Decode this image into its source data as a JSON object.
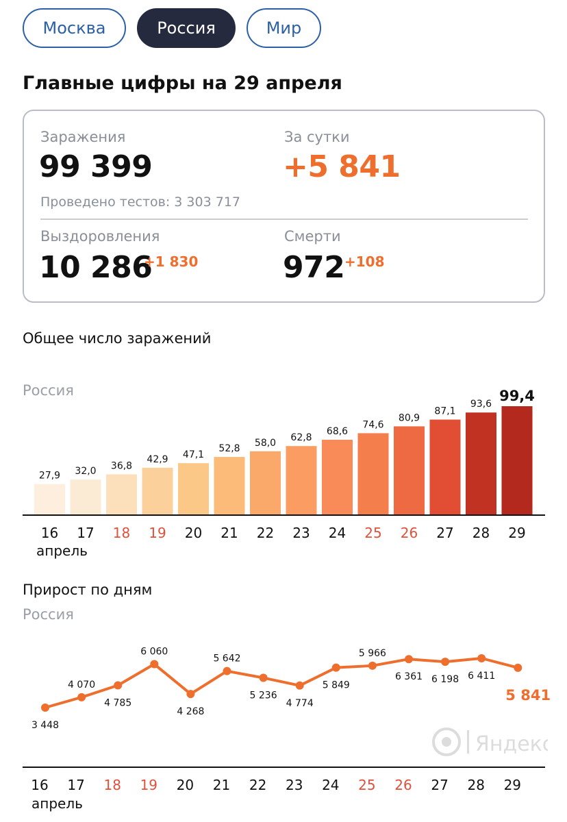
{
  "tabs": [
    {
      "label": "Москва",
      "active": false
    },
    {
      "label": "Россия",
      "active": true
    },
    {
      "label": "Мир",
      "active": false
    }
  ],
  "main_title": "Главные цифры на 29 апреля",
  "stats": {
    "infections_label": "Заражения",
    "infections_value": "99 399",
    "day_label": "За сутки",
    "day_value": "+5 841",
    "tests_text": "Проведено тестов: 3 303 717",
    "recovered_label": "Выздоровления",
    "recovered_value": "10 286",
    "recovered_inc": "+1 830",
    "deaths_label": "Смерти",
    "deaths_value": "972",
    "deaths_inc": "+108"
  },
  "bar_section": {
    "title": "Общее число заражений",
    "region": "Россия"
  },
  "line_section": {
    "title": "Прирост по дням",
    "region": "Россия"
  },
  "logo_text": "Яндекс",
  "colors": {
    "accent": "#ee6e2d",
    "weekend": "#e0503c",
    "tab_active": "#262a3f",
    "tab_border": "#2b5fa8"
  },
  "chart_data": [
    {
      "type": "bar",
      "title": "Общее число заражений",
      "subtitle": "Россия",
      "categories": [
        "16",
        "17",
        "18",
        "19",
        "20",
        "21",
        "22",
        "23",
        "24",
        "25",
        "26",
        "27",
        "28",
        "29"
      ],
      "weekend": [
        false,
        false,
        true,
        true,
        false,
        false,
        false,
        false,
        false,
        true,
        true,
        false,
        false,
        false
      ],
      "month_label": "апрель",
      "values": [
        27.9,
        32.0,
        36.8,
        42.9,
        47.1,
        52.8,
        58.0,
        62.8,
        68.6,
        74.6,
        80.9,
        87.1,
        93.6,
        99.4
      ],
      "value_labels": [
        "27,9",
        "32,0",
        "36,8",
        "42,9",
        "47,1",
        "52,8",
        "58,0",
        "62,8",
        "68,6",
        "74,6",
        "80,9",
        "87,1",
        "93,6",
        "99,4"
      ],
      "bar_colors": [
        "#fdeedd",
        "#fcebd4",
        "#fbe0bb",
        "#fcd09a",
        "#fcc888",
        "#fcbb78",
        "#fba86b",
        "#fb9c63",
        "#f98b59",
        "#f47e4c",
        "#ee6a43",
        "#e24e33",
        "#c13223",
        "#b4291d"
      ],
      "ylim": [
        0,
        100
      ]
    },
    {
      "type": "line",
      "title": "Прирост по дням",
      "subtitle": "Россия",
      "categories": [
        "16",
        "17",
        "18",
        "19",
        "20",
        "21",
        "22",
        "23",
        "24",
        "25",
        "26",
        "27",
        "28",
        "29"
      ],
      "weekend": [
        false,
        false,
        true,
        true,
        false,
        false,
        false,
        false,
        false,
        true,
        true,
        false,
        false,
        false
      ],
      "month_label": "апрель",
      "values": [
        3448,
        4070,
        4785,
        6060,
        4268,
        5642,
        5236,
        4774,
        5849,
        5966,
        6361,
        6198,
        6411,
        5841
      ],
      "value_labels": [
        "3 448",
        "4 070",
        "4 785",
        "6 060",
        "4 268",
        "5 642",
        "5 236",
        "4 774",
        "5 849",
        "5 966",
        "6 361",
        "6 198",
        "6 411",
        "5 841"
      ],
      "label_position": [
        "below",
        "above",
        "below",
        "above",
        "below",
        "above",
        "below",
        "below",
        "below",
        "above",
        "below",
        "below",
        "below",
        "right"
      ],
      "line_color": "#ee6e2d"
    }
  ]
}
